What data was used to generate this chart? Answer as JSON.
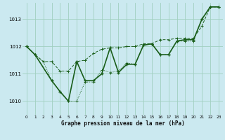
{
  "xlabel": "Graphe pression niveau de la mer (hPa)",
  "xlim": [
    -0.5,
    23.5
  ],
  "ylim": [
    1009.5,
    1013.6
  ],
  "yticks": [
    1010,
    1011,
    1012,
    1013
  ],
  "xticks": [
    0,
    1,
    2,
    3,
    4,
    5,
    6,
    7,
    8,
    9,
    10,
    11,
    12,
    13,
    14,
    15,
    16,
    17,
    18,
    19,
    20,
    21,
    22,
    23
  ],
  "bg_color": "#cbe9f0",
  "grid_color": "#a0cfc0",
  "line_color": "#1a5e1a",
  "series1_x": [
    0,
    1,
    2,
    3,
    4,
    5,
    6,
    7,
    8,
    9,
    10,
    11,
    12,
    13,
    14,
    15,
    16,
    17,
    18,
    19,
    20,
    21,
    22,
    23
  ],
  "series1_y": [
    1012.0,
    1011.7,
    1011.45,
    1010.75,
    1010.35,
    1010.0,
    1010.0,
    1010.7,
    1010.7,
    1011.15,
    1011.05,
    1011.1,
    1011.4,
    1011.35,
    1012.05,
    1012.1,
    1011.7,
    1011.7,
    1012.2,
    1012.2,
    1012.2,
    1013.0,
    1013.45,
    1013.45
  ],
  "series2_x": [
    0,
    1,
    2,
    3,
    4,
    5,
    6,
    7,
    8,
    9,
    10,
    11,
    12,
    13,
    14,
    15,
    16,
    17,
    18,
    19,
    20,
    21,
    22,
    23
  ],
  "series2_y": [
    1012.0,
    1011.7,
    1011.45,
    1011.45,
    1011.1,
    1011.1,
    1011.45,
    1011.5,
    1011.75,
    1011.9,
    1011.95,
    1011.95,
    1012.0,
    1012.0,
    1012.1,
    1012.1,
    1012.25,
    1012.25,
    1012.3,
    1012.3,
    1012.3,
    1012.75,
    1013.45,
    1013.45
  ],
  "series3_x": [
    0,
    1,
    3,
    4,
    5,
    6,
    7,
    8,
    9,
    10,
    11,
    12,
    13,
    14,
    15,
    16,
    17,
    18,
    19,
    20,
    21,
    22,
    23
  ],
  "series3_y": [
    1012.0,
    1011.7,
    1010.75,
    1010.35,
    1010.0,
    1011.45,
    1010.75,
    1010.75,
    1011.0,
    1011.95,
    1011.05,
    1011.35,
    1011.35,
    1012.05,
    1012.1,
    1011.7,
    1011.7,
    1012.2,
    1012.25,
    1012.25,
    1013.0,
    1013.45,
    1013.45
  ]
}
